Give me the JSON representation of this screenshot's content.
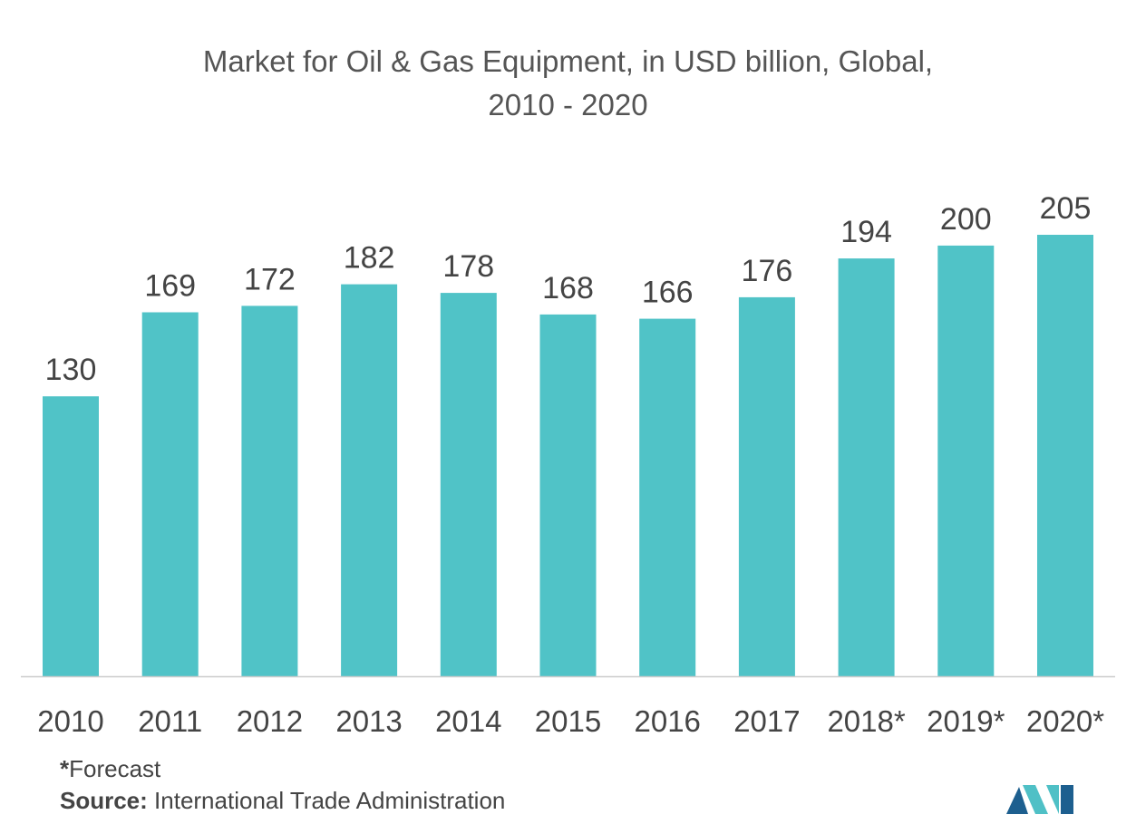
{
  "chart_data": {
    "type": "bar",
    "title_line1": "Market for Oil & Gas Equipment, in USD billion, Global,",
    "title_line2": "2010 - 2020",
    "categories": [
      "2010",
      "2011",
      "2012",
      "2013",
      "2014",
      "2015",
      "2016",
      "2017",
      "2018*",
      "2019*",
      "2020*"
    ],
    "values": [
      130,
      169,
      172,
      182,
      178,
      168,
      166,
      176,
      194,
      200,
      205
    ],
    "xlabel": "",
    "ylabel": "",
    "ylim": [
      0,
      205
    ],
    "grid": false,
    "bar_color": "#50c3c7",
    "axis_color": "#cccccc"
  },
  "footnote": {
    "marker": "*",
    "text": "Forecast"
  },
  "source": {
    "label": "Source:",
    "text": " International Trade Administration"
  },
  "logo": {
    "icon": "mordor-intelligence-logo-icon",
    "color_dark": "#1d5f8f",
    "color_light": "#4fc0c6"
  }
}
